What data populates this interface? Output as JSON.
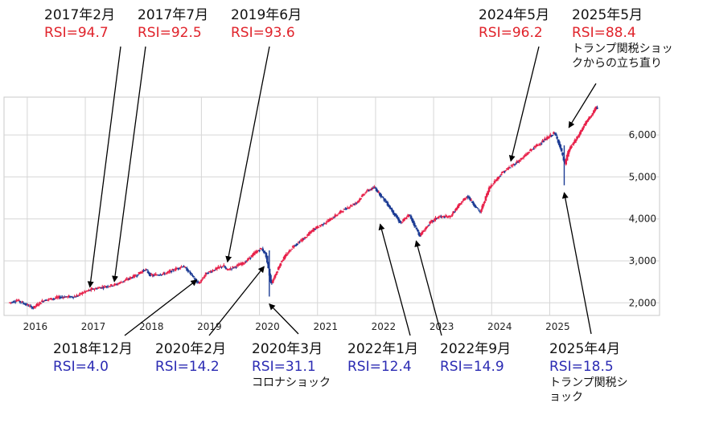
{
  "chart_data": {
    "type": "candlestick",
    "x_ticks": [
      "2016",
      "2017",
      "2018",
      "2019",
      "2020",
      "2021",
      "2022",
      "2023",
      "2024",
      "2025"
    ],
    "y_ticks": [
      "2,000",
      "3,000",
      "4,000",
      "5,000",
      "6,000"
    ],
    "ylim": [
      1700,
      6900
    ],
    "xlim": [
      2015.6,
      2025.95
    ],
    "up_color": "#e8214a",
    "down_color": "#1c3b94",
    "grid": true,
    "anchors": [
      [
        2015.7,
        2000
      ],
      [
        2015.85,
        2060
      ],
      [
        2016.0,
        1960
      ],
      [
        2016.12,
        1880
      ],
      [
        2016.3,
        2060
      ],
      [
        2016.6,
        2140
      ],
      [
        2016.85,
        2150
      ],
      [
        2017.0,
        2260
      ],
      [
        2017.15,
        2330
      ],
      [
        2017.55,
        2440
      ],
      [
        2017.9,
        2660
      ],
      [
        2018.05,
        2800
      ],
      [
        2018.15,
        2650
      ],
      [
        2018.4,
        2700
      ],
      [
        2018.7,
        2880
      ],
      [
        2018.8,
        2750
      ],
      [
        2018.97,
        2450
      ],
      [
        2019.1,
        2700
      ],
      [
        2019.4,
        2890
      ],
      [
        2019.45,
        2780
      ],
      [
        2019.75,
        2950
      ],
      [
        2019.95,
        3200
      ],
      [
        2020.05,
        3300
      ],
      [
        2020.13,
        3150
      ],
      [
        2020.22,
        2450
      ],
      [
        2020.4,
        3000
      ],
      [
        2020.6,
        3350
      ],
      [
        2020.8,
        3550
      ],
      [
        2020.95,
        3750
      ],
      [
        2021.2,
        3950
      ],
      [
        2021.45,
        4200
      ],
      [
        2021.7,
        4400
      ],
      [
        2021.85,
        4650
      ],
      [
        2022.0,
        4750
      ],
      [
        2022.2,
        4400
      ],
      [
        2022.45,
        3900
      ],
      [
        2022.6,
        4100
      ],
      [
        2022.78,
        3600
      ],
      [
        2022.95,
        3900
      ],
      [
        2023.1,
        4050
      ],
      [
        2023.3,
        4050
      ],
      [
        2023.5,
        4400
      ],
      [
        2023.6,
        4550
      ],
      [
        2023.82,
        4150
      ],
      [
        2023.98,
        4750
      ],
      [
        2024.2,
        5100
      ],
      [
        2024.35,
        5250
      ],
      [
        2024.55,
        5450
      ],
      [
        2024.7,
        5650
      ],
      [
        2024.85,
        5800
      ],
      [
        2025.1,
        6050
      ],
      [
        2025.18,
        5800
      ],
      [
        2025.28,
        5300
      ],
      [
        2025.35,
        5650
      ],
      [
        2025.5,
        5950
      ],
      [
        2025.62,
        6250
      ],
      [
        2025.75,
        6500
      ],
      [
        2025.82,
        6650
      ]
    ],
    "annotations_top": [
      {
        "date": "2017年2月",
        "rsi": "RSI=94.7",
        "x": 2017.08,
        "y": 2300
      },
      {
        "date": "2017年7月",
        "rsi": "RSI=92.5",
        "x": 2017.5,
        "y": 2430
      },
      {
        "date": "2019年6月",
        "rsi": "RSI=93.6",
        "x": 2019.45,
        "y": 2900
      },
      {
        "date": "2024年5月",
        "rsi": "RSI=96.2",
        "x": 2024.33,
        "y": 5300
      },
      {
        "date": "2025年5月",
        "rsi": "RSI=88.4",
        "x": 2025.33,
        "y": 6100,
        "note": "トランプ関税ショックからの立ち直り"
      }
    ],
    "annotations_bottom": [
      {
        "date": "2018年12月",
        "rsi": "RSI=4.0",
        "x": 2018.92,
        "y": 2620
      },
      {
        "date": "2020年2月",
        "rsi": "RSI=14.2",
        "x": 2020.08,
        "y": 2940
      },
      {
        "date": "2020年3月",
        "rsi": "RSI=31.1",
        "x": 2020.17,
        "y": 2050,
        "note": "コロナショック"
      },
      {
        "date": "2022年1月",
        "rsi": "RSI=12.4",
        "x": 2022.08,
        "y": 3950
      },
      {
        "date": "2022年9月",
        "rsi": "RSI=14.9",
        "x": 2022.7,
        "y": 3550
      },
      {
        "date": "2025年4月",
        "rsi": "RSI=18.5",
        "x": 2025.25,
        "y": 4700,
        "note": "トランプ関税ショック"
      }
    ]
  }
}
